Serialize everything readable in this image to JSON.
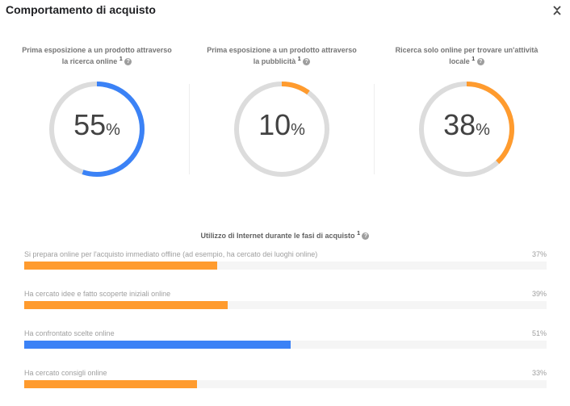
{
  "header": {
    "title": "Comportamento di acquisto",
    "collapse_icon": "collapse-icon"
  },
  "colors": {
    "orange": "#ff9b2e",
    "blue": "#3b82f6",
    "track": "#dcdcdc",
    "bar_track": "#f5f5f5"
  },
  "gauges": [
    {
      "title": "Prima esposizione a un prodotto attraverso la ricerca online",
      "footnote": "1",
      "value": 55,
      "unit": "%",
      "color": "#3b82f6"
    },
    {
      "title": "Prima esposizione a un prodotto attraverso la pubblicità",
      "footnote": "1",
      "value": 10,
      "unit": "%",
      "color": "#ff9b2e"
    },
    {
      "title": "Ricerca solo online per trovare un'attività locale",
      "footnote": "1",
      "value": 38,
      "unit": "%",
      "color": "#ff9b2e"
    }
  ],
  "stages": {
    "title": "Utilizzo di Internet durante le fasi di acquisto",
    "footnote": "1",
    "items": [
      {
        "label": "Si prepara online per l'acquisto immediato offline (ad esempio, ha cercato dei luoghi online)",
        "value": 37,
        "pct": "37%",
        "color": "#ff9b2e"
      },
      {
        "label": "Ha cercato idee e fatto scoperte iniziali online",
        "value": 39,
        "pct": "39%",
        "color": "#ff9b2e"
      },
      {
        "label": "Ha confrontato scelte online",
        "value": 51,
        "pct": "51%",
        "color": "#3b82f6"
      },
      {
        "label": "Ha cercato consigli online",
        "value": 33,
        "pct": "33%",
        "color": "#ff9b2e"
      }
    ]
  },
  "help_glyph": "?"
}
